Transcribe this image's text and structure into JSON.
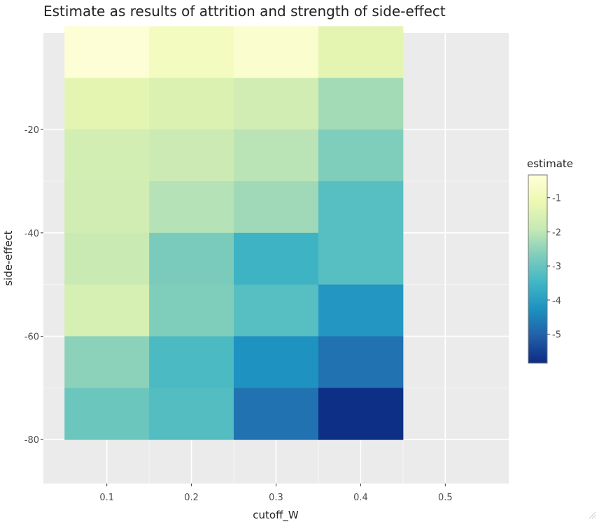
{
  "chart_data": {
    "type": "heatmap",
    "title": "Estimate as results of attrition and strength of side-effect",
    "xlabel": "cutoff_W",
    "ylabel": "side-effect",
    "x_categories": [
      0.1,
      0.2,
      0.3,
      0.4
    ],
    "y_categories": [
      -5,
      -15,
      -25,
      -35,
      -45,
      -55,
      -65,
      -75
    ],
    "x_ticks": [
      "0.1",
      "0.2",
      "0.3",
      "0.4",
      "0.5"
    ],
    "x_tick_values": [
      0.1,
      0.2,
      0.3,
      0.4,
      0.5
    ],
    "y_ticks": [
      "-20",
      "-40",
      "-60",
      "-80"
    ],
    "y_tick_values": [
      -20,
      -40,
      -60,
      -80
    ],
    "xlim": [
      0.025,
      0.575
    ],
    "ylim": [
      -88.5,
      -1.3
    ],
    "grid": true,
    "legend": {
      "title": "estimate",
      "position": "right",
      "ticks": [
        "-1",
        "-2",
        "-3",
        "-4",
        "-5"
      ],
      "tick_values": [
        -1,
        -2,
        -3,
        -4,
        -5
      ],
      "range": [
        -0.33,
        -5.85
      ]
    },
    "values": [
      [
        -0.4,
        -0.8,
        -0.55,
        -1.3
      ],
      [
        -1.3,
        -1.5,
        -1.7,
        -2.3
      ],
      [
        -1.65,
        -1.8,
        -2.05,
        -2.7
      ],
      [
        -1.7,
        -2.1,
        -2.35,
        -3.2
      ],
      [
        -1.85,
        -2.75,
        -3.55,
        -3.2
      ],
      [
        -1.6,
        -2.7,
        -3.2,
        -4.15
      ],
      [
        -2.55,
        -3.35,
        -4.25,
        -4.75
      ],
      [
        -2.95,
        -3.25,
        -4.75,
        -5.8
      ]
    ],
    "colorscale": [
      "#ffffd9",
      "#edf8b1",
      "#c7e9b4",
      "#7fcdbb",
      "#41b6c4",
      "#1d91c0",
      "#225ea8",
      "#0c2c84"
    ]
  }
}
